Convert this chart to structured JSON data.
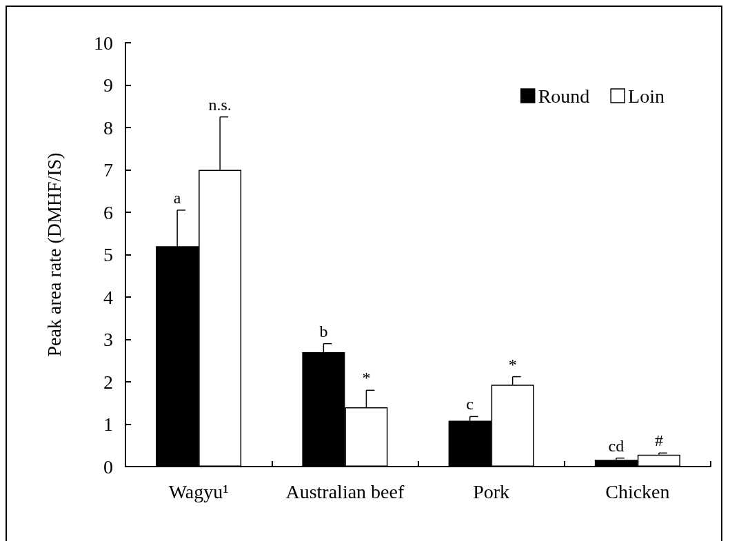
{
  "chart_data": {
    "type": "bar",
    "ylabel": "Peak area rate (DMHF/IS)",
    "categories": [
      "Wagyu¹",
      "Australian beef",
      "Pork",
      "Chicken"
    ],
    "series": [
      {
        "name": "Round",
        "color": "#000000",
        "values": [
          5.2,
          2.7,
          1.08,
          0.16
        ],
        "errors": [
          [
            5.2,
            6.05
          ],
          [
            2.7,
            2.9
          ],
          [
            1.08,
            1.18
          ],
          [
            0.16,
            0.2
          ]
        ]
      },
      {
        "name": "Loin",
        "color": "#ffffff",
        "values": [
          7.0,
          1.4,
          1.93,
          0.28
        ],
        "errors": [
          [
            7.0,
            8.25
          ],
          [
            1.4,
            1.8
          ],
          [
            1.93,
            2.12
          ],
          [
            0.28,
            0.32
          ]
        ]
      }
    ],
    "ylim": [
      0,
      10
    ],
    "yticks": [
      0,
      1,
      2,
      3,
      4,
      5,
      6,
      7,
      8,
      9,
      10
    ],
    "grid": false,
    "legend": "top right",
    "annotations": [
      {
        "text": "a",
        "x": "Wagyu¹",
        "y": 5.2
      },
      "n.s.",
      {
        "text": "b",
        "x": "Australian beef",
        "y": 2.7
      },
      {
        "text": "*",
        "x": "Australian beef",
        "y": 1.4
      },
      {
        "text": "c",
        "x": "Pork",
        "y": 1.08
      },
      {
        "text": "*",
        "x": "Pork",
        "y": 1.93
      },
      {
        "text": "cd",
        "x": "Chicken",
        "y": 0.16
      },
      {
        "text": "#",
        "x": "Chicken",
        "y": 0.28
      }
    ]
  }
}
